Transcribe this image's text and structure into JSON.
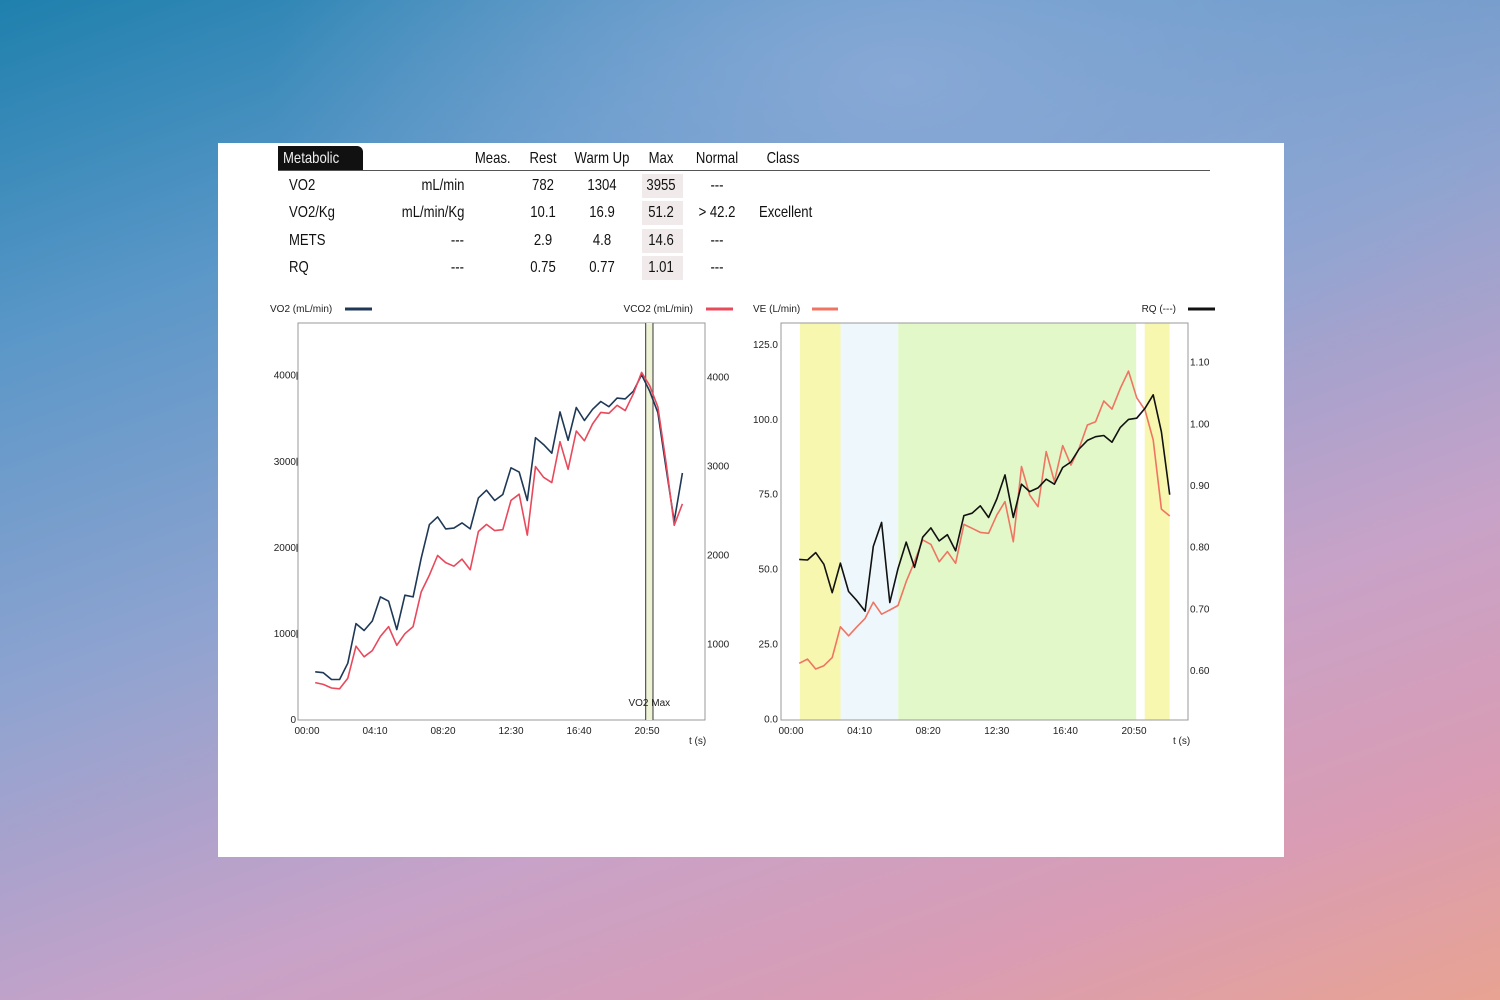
{
  "table": {
    "tab_label": "Metabolic",
    "headers": [
      "Meas.",
      "Rest",
      "Warm Up",
      "Max",
      "Normal",
      "Class"
    ],
    "rows": [
      {
        "name": "VO2",
        "unit": "mL/min",
        "rest": "782",
        "warm_up": "1304",
        "max": "3955",
        "normal": "---",
        "class": ""
      },
      {
        "name": "VO2/Kg",
        "unit": "mL/min/Kg",
        "rest": "10.1",
        "warm_up": "16.9",
        "max": "51.2",
        "normal": "> 42.2",
        "class": "Excellent"
      },
      {
        "name": "METS",
        "unit": "---",
        "rest": "2.9",
        "warm_up": "4.8",
        "max": "14.6",
        "normal": "---",
        "class": ""
      },
      {
        "name": "RQ",
        "unit": "---",
        "rest": "0.75",
        "warm_up": "0.77",
        "max": "1.01",
        "normal": "---",
        "class": ""
      }
    ]
  },
  "chart_data": [
    {
      "type": "line",
      "xlabel": "t (s)",
      "x_ticks": [
        "00:00",
        "04:10",
        "08:20",
        "12:30",
        "16:40",
        "20:50"
      ],
      "y_left_ticks": [
        "0",
        "1000",
        "2000",
        "3000",
        "4000"
      ],
      "y_right_ticks": [
        "1000",
        "2000",
        "3000",
        "4000"
      ],
      "x": [
        "00:30",
        "01:00",
        "01:30",
        "02:00",
        "02:30",
        "03:00",
        "03:30",
        "04:00",
        "04:30",
        "05:00",
        "05:30",
        "06:00",
        "06:30",
        "07:00",
        "07:30",
        "08:00",
        "08:30",
        "09:00",
        "09:30",
        "10:00",
        "10:30",
        "11:00",
        "11:30",
        "12:00",
        "12:30",
        "13:00",
        "13:30",
        "14:00",
        "14:30",
        "15:00",
        "15:30",
        "16:00",
        "16:30",
        "17:00",
        "17:30",
        "18:00",
        "18:30",
        "19:00",
        "19:30",
        "20:00",
        "20:30",
        "21:00",
        "21:30",
        "22:00",
        "22:30",
        "23:00"
      ],
      "series": [
        {
          "name": "VO2 (mL/min)",
          "axis": "left",
          "color": "#1e3856",
          "values": [
            560,
            550,
            470,
            470,
            660,
            1120,
            1040,
            1150,
            1430,
            1380,
            1050,
            1450,
            1430,
            1880,
            2270,
            2360,
            2220,
            2230,
            2290,
            2220,
            2580,
            2670,
            2550,
            2620,
            2930,
            2880,
            2550,
            3280,
            3200,
            3100,
            3580,
            3250,
            3630,
            3480,
            3610,
            3700,
            3640,
            3740,
            3730,
            3820,
            4010,
            3820,
            3570,
            2930,
            2310,
            2870
          ]
        },
        {
          "name": "VCO2 (mL/min)",
          "axis": "right",
          "color": "#e8495b",
          "values": [
            570,
            550,
            510,
            500,
            620,
            980,
            860,
            930,
            1090,
            1200,
            990,
            1120,
            1200,
            1590,
            1780,
            2000,
            1920,
            1880,
            1960,
            1840,
            2270,
            2350,
            2280,
            2290,
            2620,
            2690,
            2230,
            3000,
            2880,
            2820,
            3280,
            2970,
            3400,
            3290,
            3480,
            3610,
            3600,
            3690,
            3630,
            3820,
            4060,
            3910,
            3670,
            3050,
            2340,
            2580
          ]
        }
      ],
      "annotation": {
        "label": "VO2 Max",
        "from": "20:45",
        "to": "21:12",
        "color": "#eef3d6"
      }
    },
    {
      "type": "line",
      "xlabel": "t (s)",
      "x_ticks": [
        "00:00",
        "04:10",
        "08:20",
        "12:30",
        "16:40",
        "20:50"
      ],
      "y_left_ticks": [
        "0.0",
        "25.0",
        "50.0",
        "75.0",
        "100.0",
        "125.0"
      ],
      "y_right_ticks": [
        "0.60",
        "0.70",
        "0.80",
        "0.90",
        "1.00",
        "1.10"
      ],
      "x": [
        "00:30",
        "01:00",
        "01:30",
        "02:00",
        "02:30",
        "03:00",
        "03:30",
        "04:00",
        "04:30",
        "05:00",
        "05:30",
        "06:00",
        "06:30",
        "07:00",
        "07:30",
        "08:00",
        "08:30",
        "09:00",
        "09:30",
        "10:00",
        "10:30",
        "11:00",
        "11:30",
        "12:00",
        "12:30",
        "13:00",
        "13:30",
        "14:00",
        "14:30",
        "15:00",
        "15:30",
        "16:00",
        "16:30",
        "17:00",
        "17:30",
        "18:00",
        "18:30",
        "19:00",
        "19:30",
        "20:00",
        "20:30",
        "21:00",
        "21:30",
        "22:00",
        "22:30",
        "23:00"
      ],
      "series": [
        {
          "name": "VE (L/min)",
          "axis": "left",
          "color": "#f07462",
          "values": [
            18.7,
            20.1,
            16.8,
            17.9,
            20.6,
            30.9,
            27.9,
            30.9,
            33.7,
            39.1,
            35.1,
            36.5,
            38.0,
            46.0,
            52.6,
            59.9,
            58.4,
            52.6,
            56.0,
            52.1,
            65.1,
            63.8,
            62.4,
            62.1,
            68.2,
            72.7,
            59.3,
            84.4,
            74.9,
            71.0,
            89.4,
            79.4,
            91.4,
            84.9,
            90.5,
            98.3,
            99.4,
            106.3,
            103.6,
            110.5,
            116.3,
            107.4,
            103.3,
            93.3,
            70.2,
            67.9
          ]
        },
        {
          "name": "RQ (---)",
          "axis": "right",
          "color": "#111111",
          "values": [
            0.781,
            0.78,
            0.792,
            0.773,
            0.727,
            0.775,
            0.729,
            0.714,
            0.697,
            0.802,
            0.841,
            0.711,
            0.766,
            0.809,
            0.768,
            0.817,
            0.832,
            0.811,
            0.821,
            0.795,
            0.852,
            0.856,
            0.868,
            0.849,
            0.879,
            0.918,
            0.849,
            0.903,
            0.891,
            0.897,
            0.911,
            0.903,
            0.93,
            0.939,
            0.96,
            0.974,
            0.98,
            0.982,
            0.971,
            0.995,
            1.008,
            1.01,
            1.026,
            1.048,
            0.988,
            0.886
          ]
        }
      ],
      "bands": [
        {
          "from": "00:33",
          "to": "03:01",
          "color": "#f7f7b0"
        },
        {
          "from": "03:01",
          "to": "06:31",
          "color": "#eef8fc"
        },
        {
          "from": "06:31",
          "to": "20:58",
          "color": "#e3f8c9"
        },
        {
          "from": "21:29",
          "to": "23:00",
          "color": "#f7f7b0"
        }
      ]
    }
  ]
}
